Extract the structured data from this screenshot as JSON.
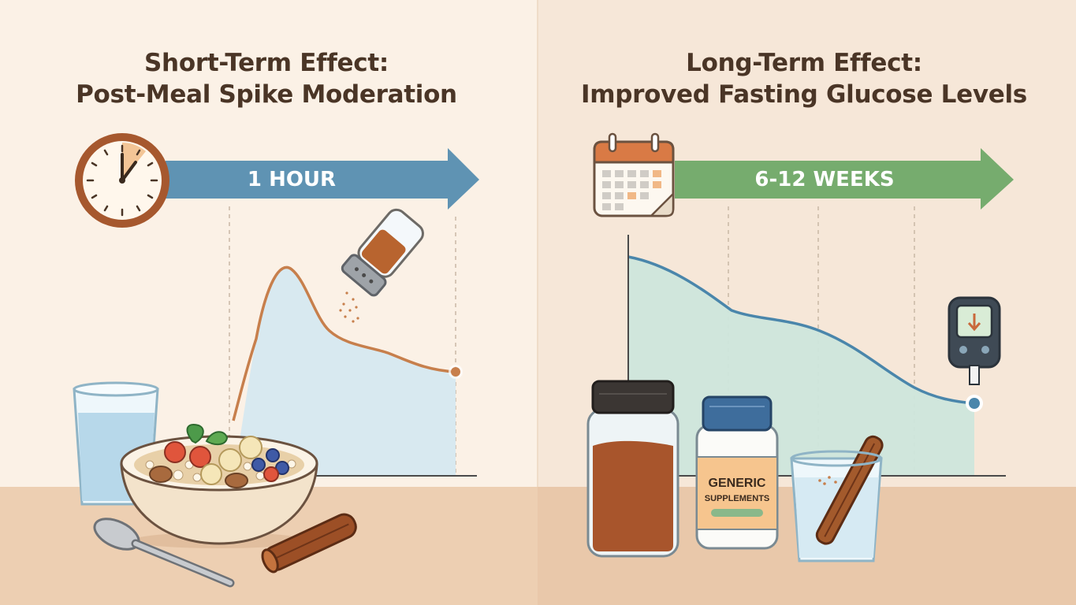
{
  "colors": {
    "left_background": "#fbf1e6",
    "right_background": "#f6e7d8",
    "table_left": "#edcfb2",
    "table_right": "#e9c8aa",
    "title_text": "#4a3526",
    "short_term_arrow": "#5f93b3",
    "long_term_arrow": "#76ac6e",
    "spike_curve": "#c77f4c",
    "spike_fill": "#d4e8f1",
    "fasting_curve": "#4a86ab",
    "fasting_fill": "#cde6dc"
  },
  "left_panel": {
    "title_line1": "Short-Term Effect:",
    "title_line2": "Post-Meal Spike Moderation",
    "arrow_label": "1 HOUR",
    "icons": [
      "clock-icon",
      "cinnamon-shaker-icon",
      "water-glass-icon",
      "oatmeal-bowl-icon",
      "spoon-icon",
      "cinnamon-stick-icon"
    ]
  },
  "right_panel": {
    "title_line1": "Long-Term Effect:",
    "title_line2": "Improved Fasting Glucose Levels",
    "arrow_label": "6-12 WEEKS",
    "supplement_label_line1": "GENERIC",
    "supplement_label_line2": "SUPPLEMENTS",
    "icons": [
      "calendar-icon",
      "glucose-meter-icon",
      "cinnamon-jar-icon",
      "supplement-bottle-icon",
      "cinnamon-water-glass-icon"
    ]
  }
}
